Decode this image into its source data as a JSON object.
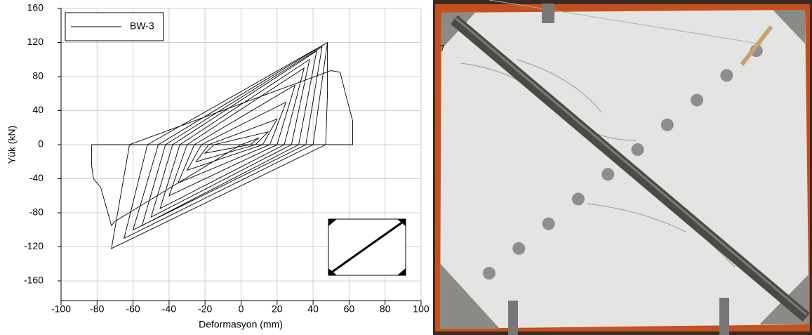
{
  "chart_data": {
    "type": "line",
    "x_label": "Deformasyon (mm)",
    "y_label": "Yük (kN)",
    "x": [
      0,
      10,
      5,
      -20,
      -15,
      15,
      8,
      -25,
      -18,
      20,
      12,
      -30,
      -22,
      25,
      16,
      -35,
      -26,
      30,
      20,
      -40,
      -30,
      35,
      24,
      -45,
      -34,
      38,
      28,
      -50,
      -38,
      42,
      32,
      -55,
      -42,
      45,
      36,
      -60,
      -46,
      48,
      40,
      -65,
      -52,
      48,
      48,
      47,
      -72,
      -62,
      50,
      55,
      58,
      62,
      62,
      0,
      -70,
      -72,
      -78,
      -82,
      -83,
      -83,
      0
    ],
    "series": [
      {
        "name": "BW-3",
        "color": "#000000",
        "values": [
          0,
          8,
          0,
          -10,
          0,
          15,
          0,
          -20,
          0,
          30,
          0,
          -30,
          0,
          50,
          0,
          -45,
          0,
          70,
          0,
          -60,
          0,
          90,
          0,
          -75,
          0,
          100,
          0,
          -85,
          0,
          110,
          0,
          -95,
          0,
          115,
          0,
          -100,
          0,
          120,
          0,
          -110,
          0,
          120,
          60,
          0,
          -122,
          0,
          87,
          85,
          60,
          28,
          0,
          0,
          -90,
          -95,
          -50,
          -40,
          -25,
          0,
          0
        ]
      }
    ],
    "xlim": [
      -100,
      100
    ],
    "ylim": [
      -160,
      160
    ],
    "xticks": [
      -100,
      -80,
      -60,
      -40,
      -20,
      0,
      20,
      40,
      60,
      80,
      100
    ],
    "yticks": [
      -160,
      -120,
      -80,
      -40,
      0,
      40,
      80,
      120,
      160
    ],
    "grid": true,
    "legend": "upper left"
  },
  "photo": {
    "panel_label": "7"
  }
}
